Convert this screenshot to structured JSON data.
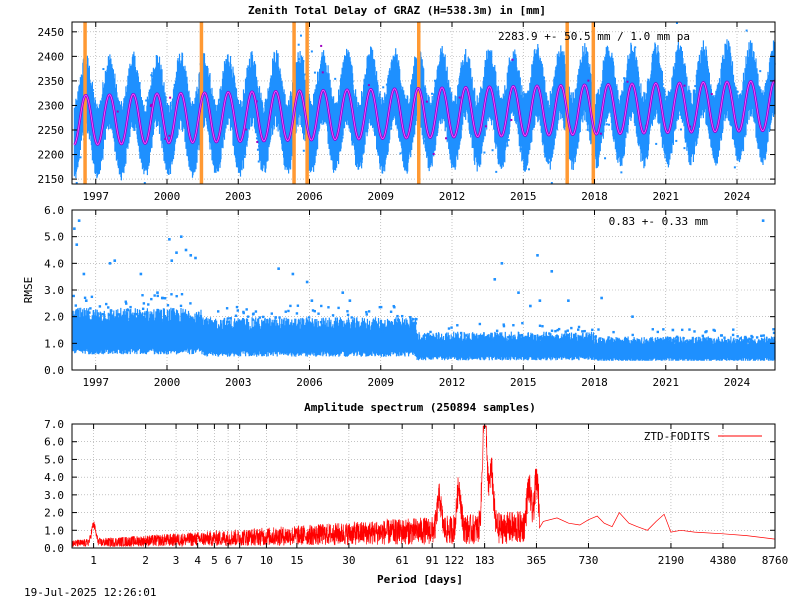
{
  "footer": {
    "timestamp": "19-Jul-2025 12:26:01"
  },
  "colors": {
    "raw": "#1e90ff",
    "model": "#a000c0",
    "fit": "#9400d3",
    "break": "#ff9933",
    "spectrum": "#ff0000",
    "grid": "#a0a0a0",
    "axis": "#000000"
  },
  "chart_data": [
    {
      "type": "scatter",
      "title": "Zenith Total Delay of GRAZ (H=538.3m) in [mm]",
      "annotation": "2283.9 +-  50.5 mm /  1.0 mm pa",
      "xlabel": "",
      "ylabel": "",
      "xlim": [
        1996.0,
        2025.6
      ],
      "ylim": [
        2140,
        2470
      ],
      "xticks": [
        1997,
        2000,
        2003,
        2006,
        2009,
        2012,
        2015,
        2018,
        2021,
        2024
      ],
      "xtick_labels": [
        "1997",
        "2000",
        "2003",
        "2006",
        "2009",
        "2012",
        "2015",
        "2018",
        "2021",
        "2024"
      ],
      "yticks": [
        2150,
        2200,
        2250,
        2300,
        2350,
        2400,
        2450
      ],
      "ytick_labels": [
        "2150",
        "2200",
        "2250",
        "2300",
        "2350",
        "2400",
        "2450"
      ],
      "seasonal_model": {
        "mean": 2283.9,
        "amplitude": 50.5,
        "trend_mm_per_year": 1.0,
        "period_years": 1.0,
        "peak_phase_year_fraction": 0.58
      },
      "raw_spread_mm": 70,
      "breaks": [
        1996.55,
        2001.45,
        2005.35,
        2005.9,
        2010.6,
        2016.85,
        2017.95
      ],
      "grid": true
    },
    {
      "type": "scatter",
      "title": "",
      "annotation": "0.83 +-  0.33 mm",
      "xlabel": "",
      "ylabel": "RMSE",
      "xlim": [
        1996.0,
        2025.6
      ],
      "ylim": [
        0.0,
        6.0
      ],
      "xticks": [
        1997,
        2000,
        2003,
        2006,
        2009,
        2012,
        2015,
        2018,
        2021,
        2024
      ],
      "xtick_labels": [
        "1997",
        "2000",
        "2003",
        "2006",
        "2009",
        "2012",
        "2015",
        "2018",
        "2021",
        "2024"
      ],
      "yticks": [
        0.0,
        1.0,
        2.0,
        3.0,
        4.0,
        5.0,
        6.0
      ],
      "ytick_labels": [
        "0.0",
        "1.0",
        "2.0",
        "3.0",
        "4.0",
        "5.0",
        "6.0"
      ],
      "level_by_period": [
        {
          "from": 1996.0,
          "to": 2001.5,
          "mean": 1.3
        },
        {
          "from": 2001.5,
          "to": 2010.5,
          "mean": 1.1
        },
        {
          "from": 2010.5,
          "to": 2018.0,
          "mean": 0.8
        },
        {
          "from": 2018.0,
          "to": 2025.6,
          "mean": 0.7
        }
      ],
      "outliers": [
        [
          1996.1,
          5.3
        ],
        [
          1996.3,
          5.6
        ],
        [
          1996.2,
          4.7
        ],
        [
          1996.5,
          3.6
        ],
        [
          1996.6,
          2.6
        ],
        [
          1997.6,
          4.0
        ],
        [
          1997.8,
          4.1
        ],
        [
          1998.9,
          3.6
        ],
        [
          1999.6,
          2.9
        ],
        [
          1999.8,
          2.7
        ],
        [
          2000.1,
          4.9
        ],
        [
          2000.2,
          4.1
        ],
        [
          2000.4,
          4.4
        ],
        [
          2000.6,
          5.0
        ],
        [
          2000.8,
          4.5
        ],
        [
          2001.0,
          4.3
        ],
        [
          2001.2,
          4.2
        ],
        [
          2004.7,
          3.8
        ],
        [
          2005.3,
          3.6
        ],
        [
          2005.9,
          3.3
        ],
        [
          2006.1,
          2.6
        ],
        [
          2007.4,
          2.9
        ],
        [
          2007.7,
          2.6
        ],
        [
          2013.8,
          3.4
        ],
        [
          2014.1,
          4.0
        ],
        [
          2014.8,
          2.9
        ],
        [
          2015.3,
          2.4
        ],
        [
          2015.6,
          4.3
        ],
        [
          2015.7,
          2.6
        ],
        [
          2016.2,
          3.7
        ],
        [
          2016.9,
          2.6
        ],
        [
          2018.3,
          2.7
        ],
        [
          2019.6,
          2.0
        ],
        [
          2021.3,
          1.5
        ],
        [
          2025.1,
          5.6
        ]
      ],
      "grid": true
    },
    {
      "type": "line",
      "title": "Amplitude spectrum (250894 samples)",
      "xlabel": "Period [days]",
      "ylabel": "",
      "xscale": "log",
      "xlim": [
        0.75,
        8760
      ],
      "ylim": [
        0.0,
        7.0
      ],
      "xticks": [
        1,
        2,
        3,
        4,
        5,
        6,
        7,
        10,
        15,
        30,
        61,
        91,
        122,
        183,
        365,
        730,
        2190,
        4380,
        8760
      ],
      "xtick_labels": [
        "1",
        "2",
        "3",
        "4",
        "5",
        "6",
        "7",
        "10",
        "15",
        "30",
        "61",
        "91",
        "122",
        "183",
        "365",
        "730",
        "2190",
        "4380",
        "8760"
      ],
      "yticks": [
        0.0,
        1.0,
        2.0,
        3.0,
        4.0,
        5.0,
        6.0,
        7.0
      ],
      "ytick_labels": [
        "0.0",
        "1.0",
        "2.0",
        "3.0",
        "4.0",
        "5.0",
        "6.0",
        "7.0"
      ],
      "series": [
        {
          "name": "ZTD-FODITS"
        }
      ],
      "peaks": [
        {
          "period": 1.0,
          "amplitude": 1.2
        },
        {
          "period": 183,
          "amplitude": 6.8
        },
        {
          "period": 200,
          "amplitude": 3.8
        },
        {
          "period": 365,
          "amplitude": 3.0
        },
        {
          "period": 330,
          "amplitude": 2.6
        },
        {
          "period": 130,
          "amplitude": 2.8
        },
        {
          "period": 100,
          "amplitude": 2.2
        }
      ],
      "long_period_points": [
        [
          400,
          1.5
        ],
        [
          480,
          1.7
        ],
        [
          560,
          1.4
        ],
        [
          650,
          1.3
        ],
        [
          730,
          1.6
        ],
        [
          820,
          1.8
        ],
        [
          900,
          1.4
        ],
        [
          1000,
          1.2
        ],
        [
          1100,
          2.0
        ],
        [
          1250,
          1.4
        ],
        [
          1400,
          1.2
        ],
        [
          1600,
          1.0
        ],
        [
          1800,
          1.5
        ],
        [
          2000,
          1.9
        ],
        [
          2190,
          0.9
        ],
        [
          2500,
          1.0
        ],
        [
          3000,
          0.9
        ],
        [
          4380,
          0.8
        ],
        [
          6000,
          0.7
        ],
        [
          8760,
          0.5
        ]
      ],
      "legend_placement": "top-right",
      "grid": true
    }
  ]
}
